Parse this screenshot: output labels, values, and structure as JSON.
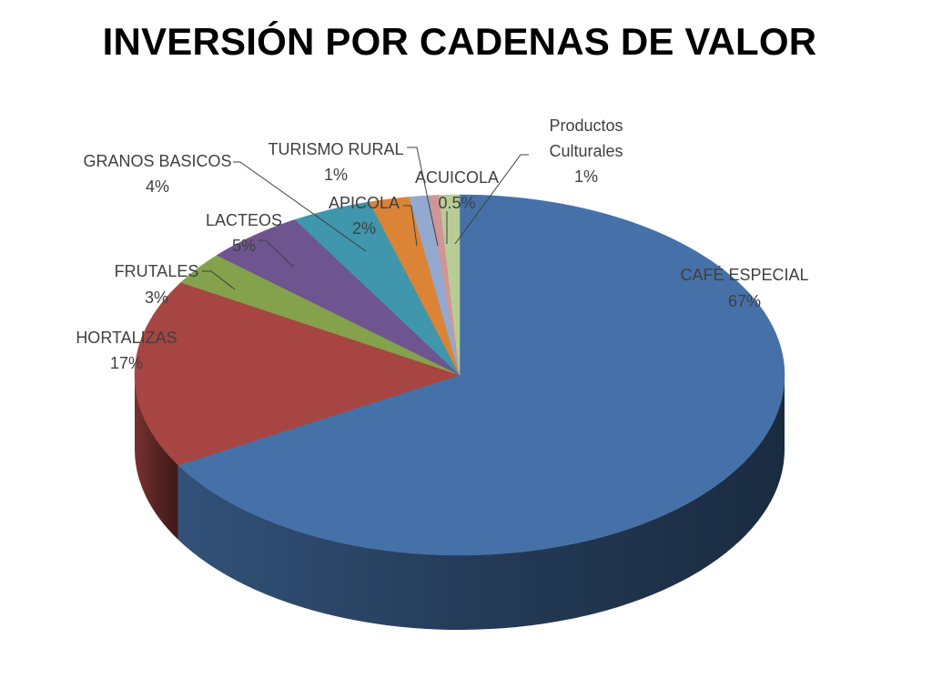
{
  "chart_data": {
    "type": "pie",
    "title": "INVERSIÓN POR CADENAS DE VALOR",
    "slices": [
      {
        "label": "CAFÉ ESPECIAL",
        "value": 67,
        "value_label": "67%",
        "color": "#4571a8"
      },
      {
        "label": "HORTALIZAS",
        "value": 17,
        "value_label": "17%",
        "color": "#a74542"
      },
      {
        "label": "FRUTALES",
        "value": 3,
        "value_label": "3%",
        "color": "#84a24b"
      },
      {
        "label": "LACTEOS",
        "value": 5,
        "value_label": "5%",
        "color": "#6e5590"
      },
      {
        "label": "GRANOS BASICOS",
        "value": 4,
        "value_label": "4%",
        "color": "#3f96ad"
      },
      {
        "label": "APICOLA",
        "value": 2,
        "value_label": "2%",
        "color": "#db8435"
      },
      {
        "label": "TURISMO RURAL",
        "value": 1,
        "value_label": "1%",
        "color": "#93a9cf"
      },
      {
        "label": "ACUICOLA",
        "value": 0.5,
        "value_label": "0.5%",
        "color": "#d09695"
      },
      {
        "label": "Productos Culturales",
        "value": 1,
        "value_label": "1%",
        "color": "#b8cd95"
      }
    ]
  }
}
